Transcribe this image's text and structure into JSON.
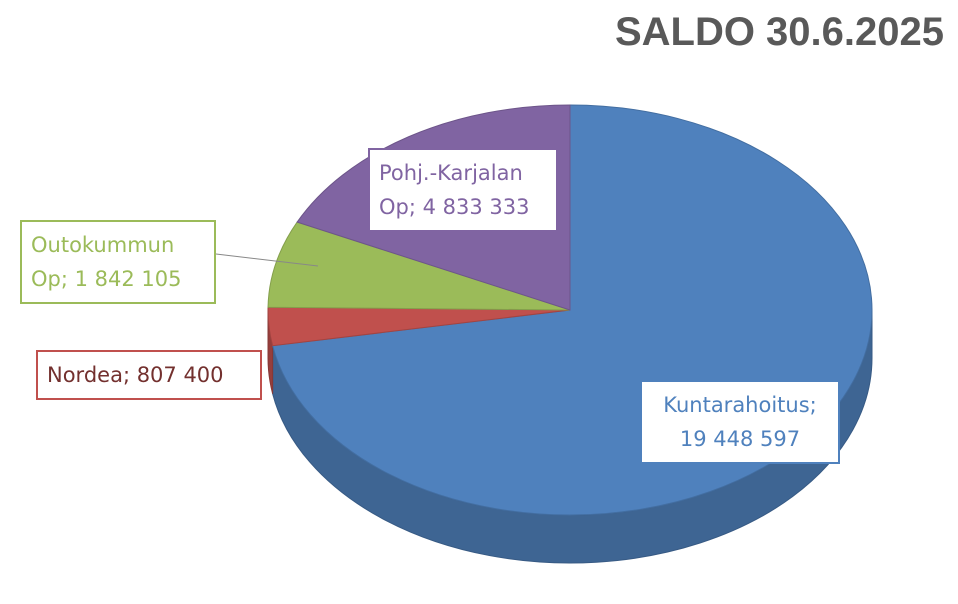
{
  "chart_data": {
    "type": "pie",
    "title": "SALDO 30.6.2025",
    "values": [
      19448597,
      807400,
      1842105,
      4833333
    ],
    "value_labels": [
      "Kuntarahoitus; 19 448 597",
      "Nordea; 807 400",
      "Outokummun Op; 1 842 105",
      "Pohj.-Karjalan Op; 4 833 333"
    ],
    "colors": [
      "#4f81bd",
      "#c0504d",
      "#9bbb59",
      "#8064a2"
    ]
  }
}
